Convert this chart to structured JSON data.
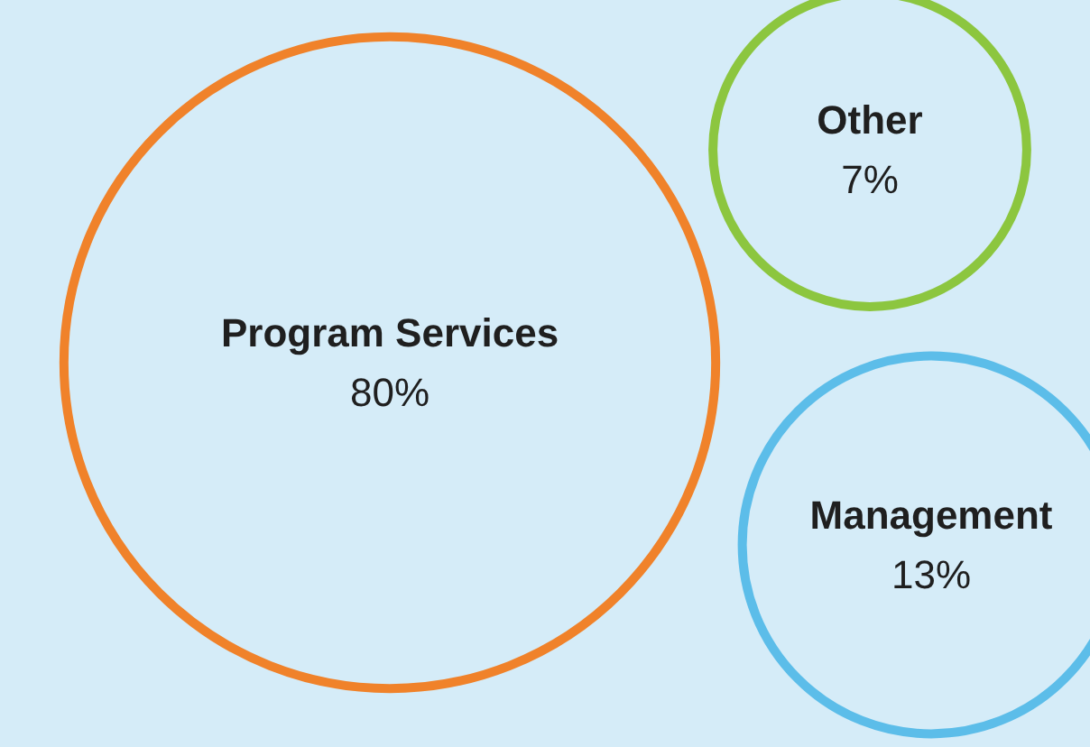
{
  "chart_data": {
    "type": "other",
    "categories": [
      "Program Services",
      "Other",
      "Management"
    ],
    "values": [
      80,
      7,
      13
    ],
    "value_labels": [
      "80%",
      "7%",
      "13%"
    ],
    "colors": [
      "#f0822a",
      "#8cc63f",
      "#5cbde9"
    ]
  }
}
